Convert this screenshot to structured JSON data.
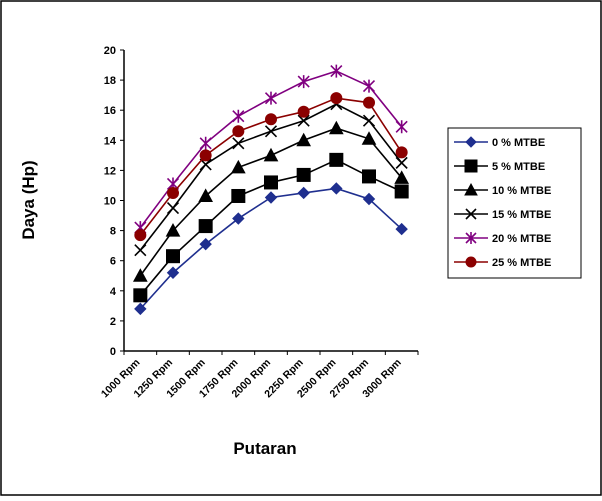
{
  "chart_data": {
    "type": "line",
    "categories": [
      "1000 Rpm",
      "1250 Rpm",
      "1500 Rpm",
      "1750 Rpm",
      "2000 Rpm",
      "2250 Rpm",
      "2500 Rpm",
      "2750 Rpm",
      "3000 Rpm"
    ],
    "xlabel": "Putaran",
    "ylabel": "Daya (Hp)",
    "ylim": [
      0,
      20
    ],
    "yticks": [
      "0",
      "2",
      "4",
      "6",
      "8",
      "10",
      "12",
      "14",
      "16",
      "18",
      "20"
    ],
    "legend_position": "right",
    "series": [
      {
        "name": "0 % MTBE",
        "color": "#1f2f8f",
        "marker": "diamond",
        "values": [
          2.8,
          5.2,
          7.1,
          8.8,
          10.2,
          10.5,
          10.8,
          10.1,
          8.1
        ]
      },
      {
        "name": "5 % MTBE",
        "color": "#000000",
        "marker": "square",
        "values": [
          3.7,
          6.3,
          8.3,
          10.3,
          11.2,
          11.7,
          12.7,
          11.6,
          10.6
        ]
      },
      {
        "name": "10 % MTBE",
        "color": "#000000",
        "marker": "triangle",
        "values": [
          5.0,
          8.0,
          10.3,
          12.2,
          13.0,
          14.0,
          14.8,
          14.1,
          11.5
        ]
      },
      {
        "name": "15 % MTBE",
        "color": "#000000",
        "marker": "x",
        "values": [
          6.7,
          9.5,
          12.4,
          13.8,
          14.6,
          15.3,
          16.4,
          15.3,
          12.5
        ]
      },
      {
        "name": "20 % MTBE",
        "color": "#800080",
        "marker": "star",
        "values": [
          8.2,
          11.1,
          13.8,
          15.6,
          16.8,
          17.9,
          18.6,
          17.6,
          14.9
        ]
      },
      {
        "name": "25 % MTBE",
        "color": "#8b0000",
        "marker": "circle",
        "values": [
          7.7,
          10.5,
          13.0,
          14.6,
          15.4,
          15.9,
          16.8,
          16.5,
          13.2
        ]
      }
    ]
  }
}
